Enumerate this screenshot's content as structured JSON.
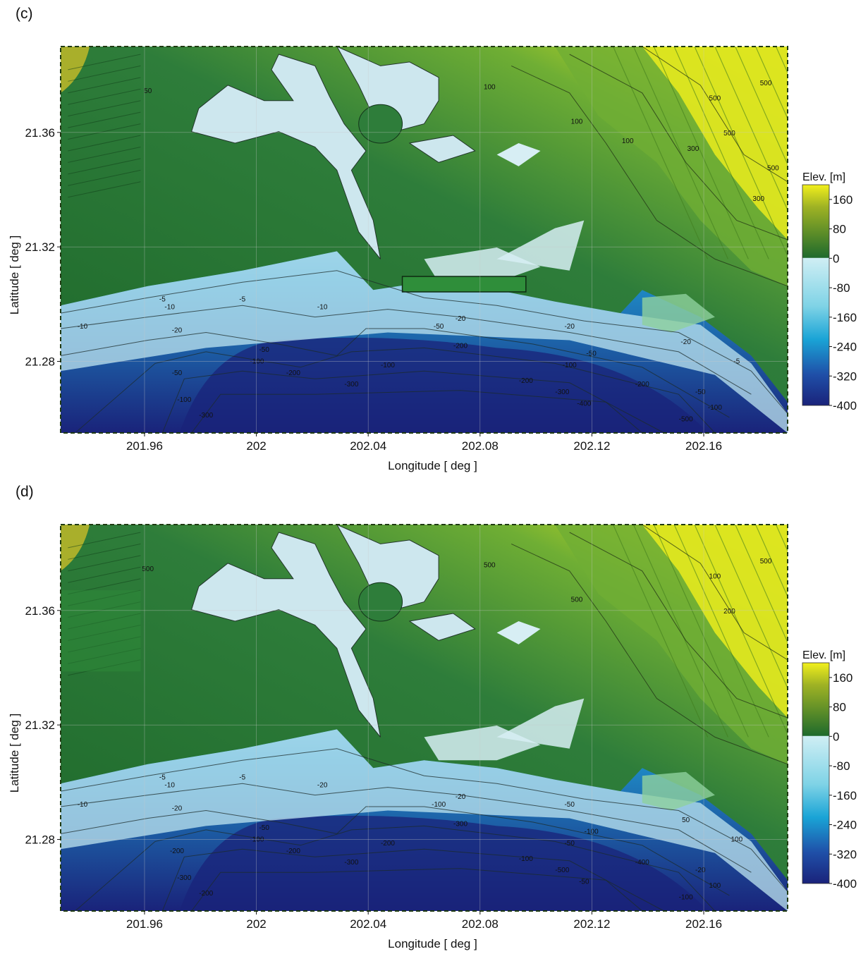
{
  "panels": [
    {
      "id": "c",
      "label": "(c)",
      "xlabel": "Longitude   [ deg ]",
      "ylabel": "Latitude   [ deg ]",
      "x_ticks": [
        "201.96",
        "202",
        "202.04",
        "202.08",
        "202.12",
        "202.16"
      ],
      "y_ticks": [
        "21.36",
        "21.32",
        "21.28"
      ],
      "colorbar": {
        "title": "Elev. [m]",
        "ticks": [
          "160",
          "80",
          "0",
          "-80",
          "-160",
          "-240",
          "-320",
          "-400"
        ]
      },
      "contour_labels": [
        "-10",
        "-10",
        "-5",
        "-5",
        "-10",
        "-20",
        "-20",
        "-20",
        "-50",
        "-50",
        "-100",
        "-100",
        "-200",
        "-200",
        "-300",
        "-300",
        "-200",
        "-100",
        "-50",
        "-50",
        "-100",
        "-200",
        "-300",
        "-400",
        "-500",
        "-50",
        "-100",
        "-20",
        "-5",
        "100",
        "50",
        "100",
        "500",
        "500",
        "500",
        "300",
        "300",
        "100",
        "500"
      ]
    },
    {
      "id": "d",
      "label": "(d)",
      "xlabel": "Longitude   [ deg ]",
      "ylabel": "Latitude   [ deg ]",
      "x_ticks": [
        "201.96",
        "202",
        "202.04",
        "202.08",
        "202.12",
        "202.16"
      ],
      "y_ticks": [
        "21.36",
        "21.32",
        "21.28"
      ],
      "colorbar": {
        "title": "Elev. [m]",
        "ticks": [
          "160",
          "80",
          "0",
          "-80",
          "-160",
          "-240",
          "-320",
          "-400"
        ]
      },
      "contour_labels": [
        "-10",
        "-10",
        "-5",
        "-5",
        "-20",
        "-20",
        "-20",
        "-50",
        "-50",
        "-100",
        "-100",
        "-200",
        "-200",
        "-300",
        "-300",
        "-200",
        "-100",
        "-50",
        "-100",
        "-200",
        "-300",
        "-400",
        "-500",
        "-50",
        "-100",
        "-20",
        "100",
        "50",
        "100",
        "500",
        "500",
        "500",
        "500",
        "100",
        "200"
      ]
    }
  ],
  "map_meta": {
    "lon_range": [
      201.93,
      202.19
    ],
    "lat_range": [
      21.255,
      21.39
    ],
    "elev_range": [
      -400,
      200
    ],
    "colors": {
      "deep_ocean": "#1a237a",
      "ocean_mid": "#1f8fc9",
      "shelf": "#7fd3e6",
      "shoreline": "#c9e9f1",
      "lowland": "#2e7d3a",
      "forest": "#1f6a2c",
      "upland": "#6fae34",
      "peak": "#f2f01c"
    }
  }
}
